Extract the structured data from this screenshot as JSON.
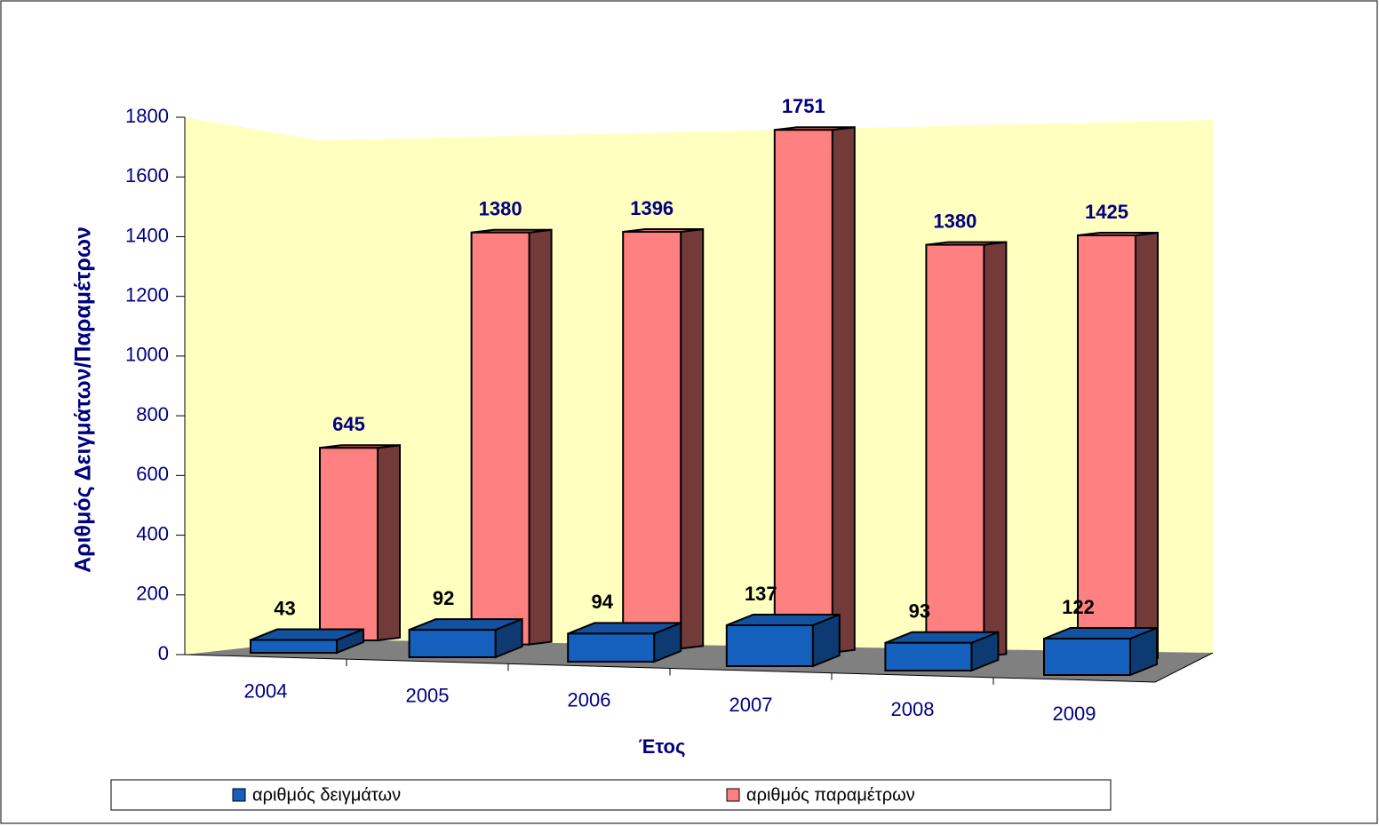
{
  "chart_data": {
    "type": "bar3d",
    "x_label": "Έτος",
    "y_label": "Αριθμός Δειγμάτων/Παραμέτρων",
    "categories": [
      "2004",
      "2005",
      "2006",
      "2007",
      "2008",
      "2009"
    ],
    "series": [
      {
        "name": "αριθμός δειγμάτων",
        "color": "#1560bd",
        "values": [
          43,
          92,
          94,
          137,
          93,
          122
        ]
      },
      {
        "name": "αριθμός παραμέτρων",
        "color": "#ff8080",
        "values": [
          645,
          1380,
          1396,
          1751,
          1380,
          1425
        ]
      }
    ],
    "ylim": [
      0,
      1800
    ],
    "yticks": [
      0,
      200,
      400,
      600,
      800,
      1000,
      1200,
      1400,
      1600,
      1800
    ]
  }
}
